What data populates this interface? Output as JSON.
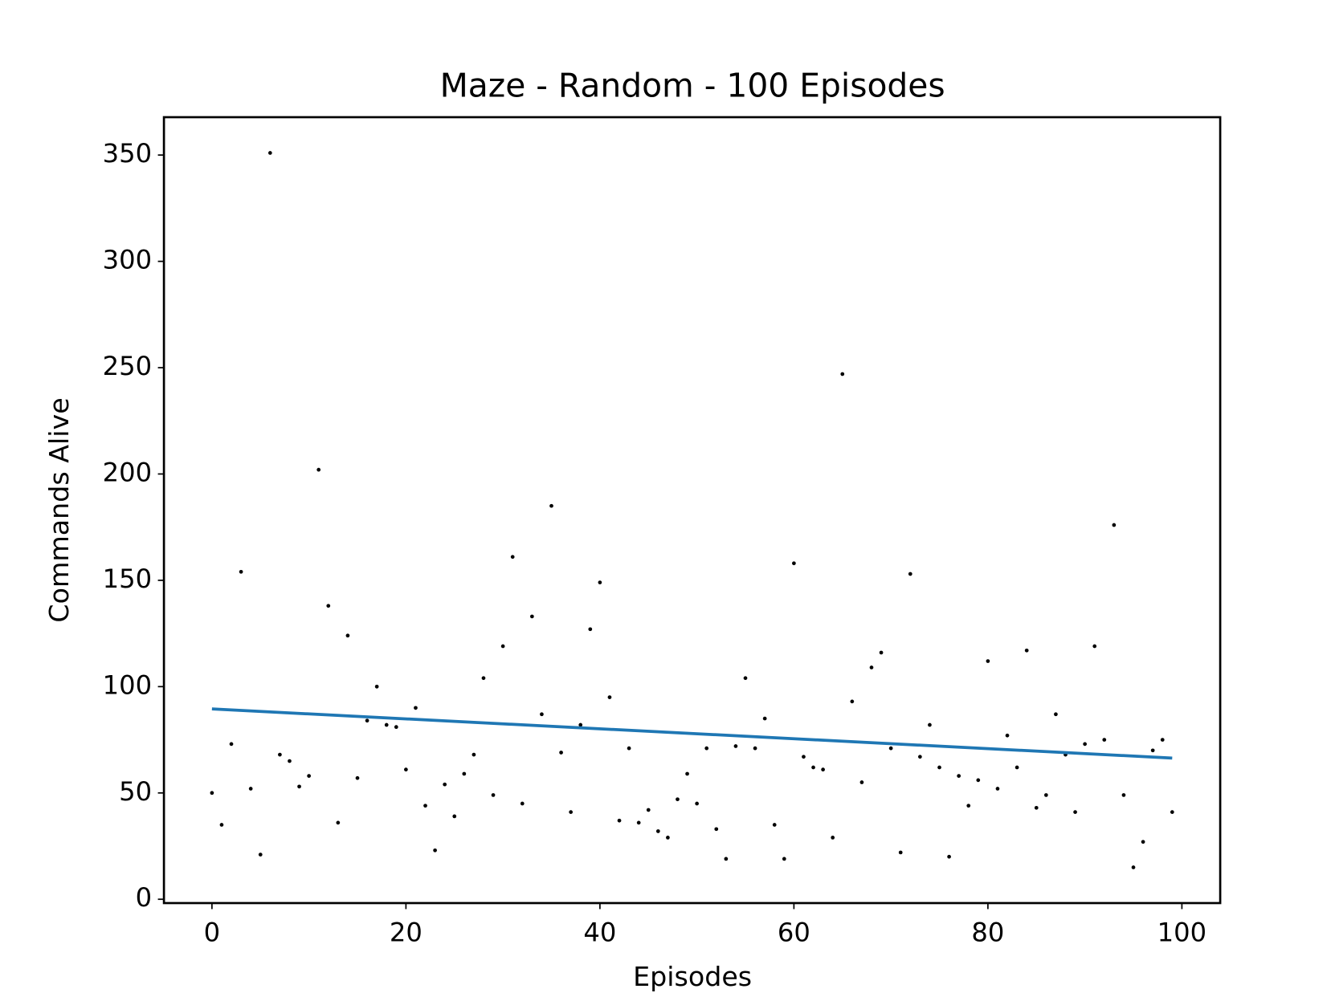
{
  "chart_data": {
    "type": "scatter",
    "title": "Maze - Random - 100 Episodes",
    "xlabel": "Episodes",
    "ylabel": "Commands Alive",
    "xlim": [
      -4.95,
      103.95
    ],
    "ylim": [
      -1.8,
      367.8
    ],
    "xticks": [
      0,
      20,
      40,
      60,
      80,
      100
    ],
    "yticks": [
      0,
      50,
      100,
      150,
      200,
      250,
      300,
      350
    ],
    "grid": false,
    "x": [
      0,
      1,
      2,
      3,
      4,
      5,
      6,
      7,
      8,
      9,
      10,
      11,
      12,
      13,
      14,
      15,
      16,
      17,
      18,
      19,
      20,
      21,
      22,
      23,
      24,
      25,
      26,
      27,
      28,
      29,
      30,
      31,
      32,
      33,
      34,
      35,
      36,
      37,
      38,
      39,
      40,
      41,
      42,
      43,
      44,
      45,
      46,
      47,
      48,
      49,
      50,
      51,
      52,
      53,
      54,
      55,
      56,
      57,
      58,
      59,
      60,
      61,
      62,
      63,
      64,
      65,
      66,
      67,
      68,
      69,
      70,
      71,
      72,
      73,
      74,
      75,
      76,
      77,
      78,
      79,
      80,
      81,
      82,
      83,
      84,
      85,
      86,
      87,
      88,
      89,
      90,
      91,
      92,
      93,
      94,
      95,
      96,
      97,
      98,
      99
    ],
    "series": [
      {
        "type": "scatter",
        "color": "#000000",
        "values": [
          50,
          35,
          73,
          154,
          52,
          21,
          351,
          68,
          65,
          53,
          58,
          202,
          138,
          36,
          124,
          57,
          84,
          100,
          82,
          81,
          61,
          90,
          44,
          23,
          54,
          39,
          59,
          68,
          104,
          49,
          119,
          161,
          45,
          133,
          87,
          185,
          69,
          41,
          82,
          127,
          149,
          95,
          37,
          71,
          36,
          42,
          32,
          29,
          47,
          59,
          45,
          71,
          33,
          19,
          72,
          104,
          71,
          85,
          35,
          19,
          158,
          67,
          62,
          61,
          29,
          247,
          93,
          55,
          109,
          116,
          71,
          22,
          153,
          67,
          82,
          62,
          20,
          58,
          44,
          56,
          112,
          52,
          77,
          62,
          117,
          43,
          49,
          87,
          68,
          41,
          73,
          119,
          75,
          176,
          49,
          15,
          27,
          70,
          75,
          41
        ]
      },
      {
        "type": "line",
        "color": "#1f77b4",
        "x": [
          0,
          99
        ],
        "values": [
          89.5,
          66.4
        ]
      }
    ]
  }
}
